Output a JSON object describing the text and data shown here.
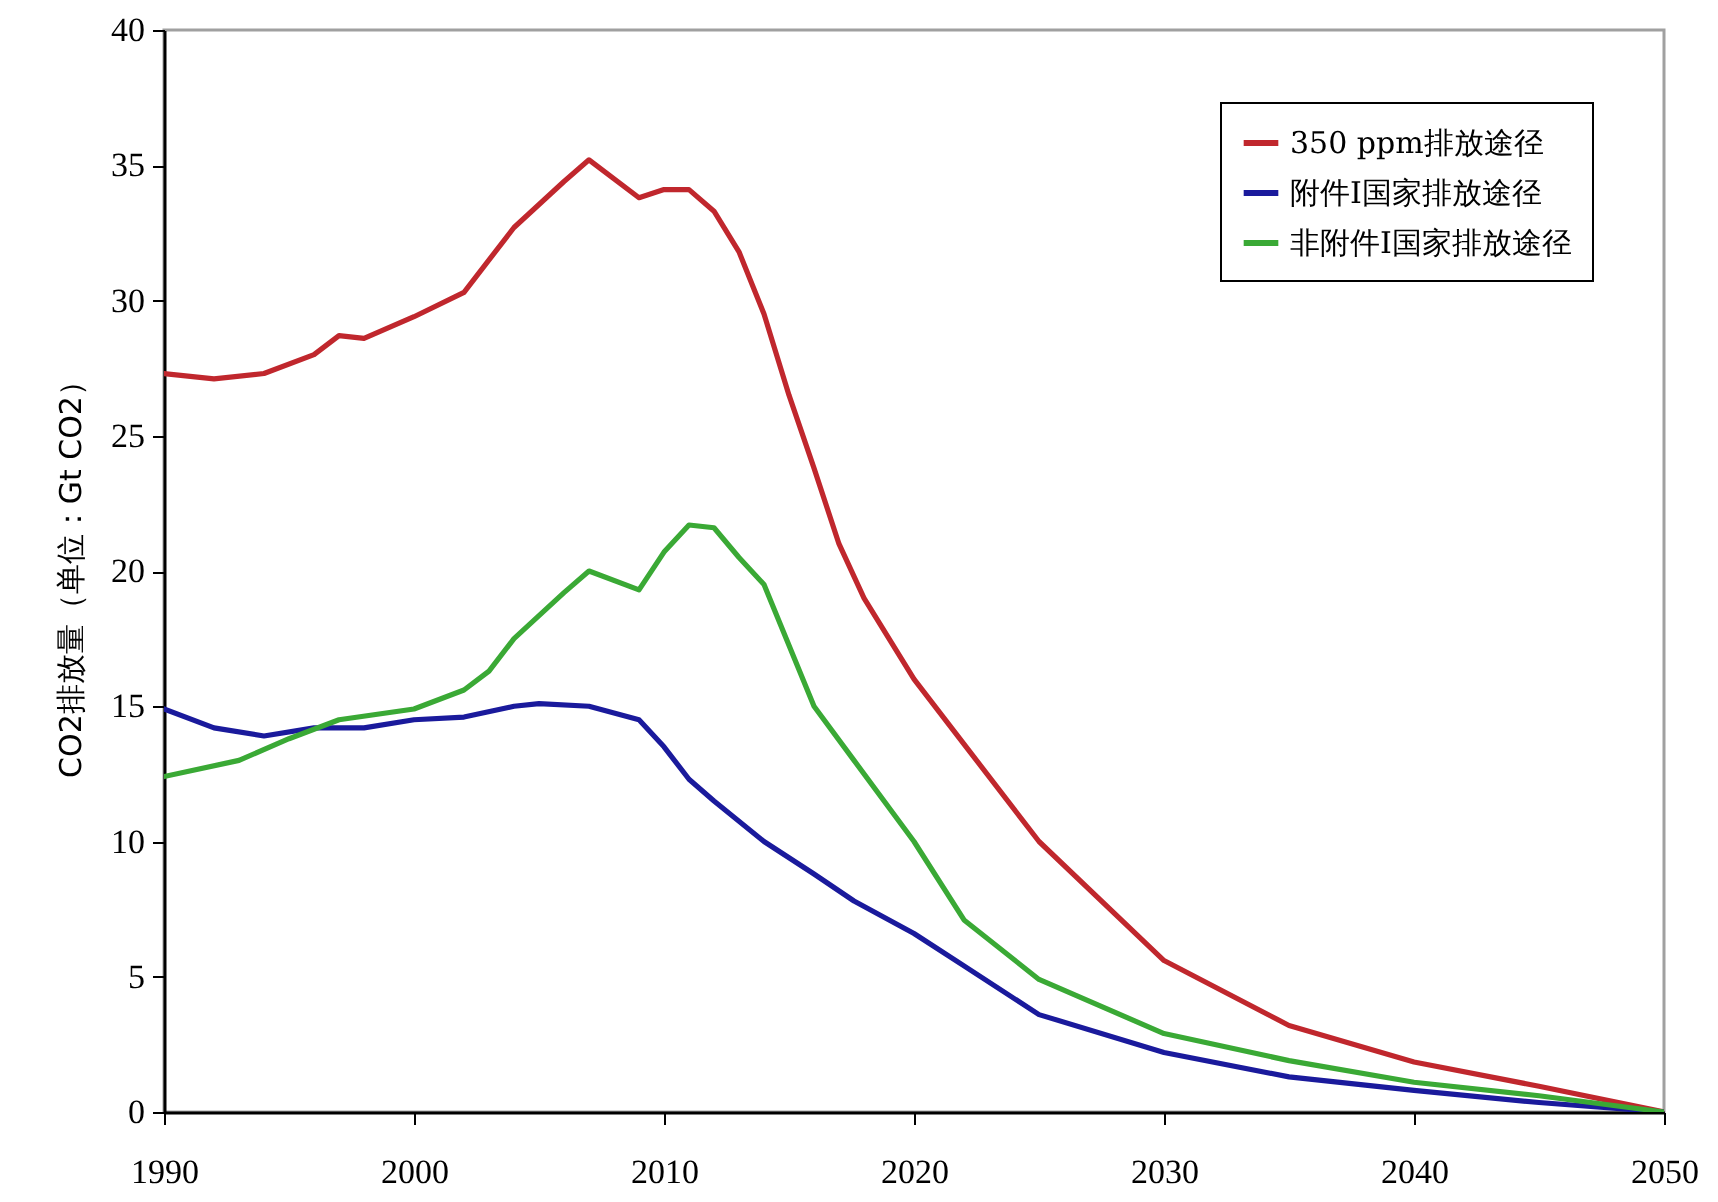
{
  "chart_data": {
    "type": "line",
    "ylabel": "CO2排放量（单位：Gt CO2）",
    "xlim": [
      1990,
      2050
    ],
    "xticks": [
      1990,
      2000,
      2010,
      2020,
      2030,
      2040,
      2050
    ],
    "ylim": [
      0,
      40
    ],
    "yticks": [
      0,
      5,
      10,
      15,
      20,
      25,
      30,
      35,
      40
    ],
    "grid": false,
    "legend": "top right",
    "marker": "none",
    "line_style": "solid",
    "series": [
      {
        "name": "350 ppm排放途径",
        "color": "#c0272d",
        "x": [
          1990,
          1992,
          1994,
          1996,
          1997,
          1998,
          2000,
          2002,
          2004,
          2006,
          2007,
          2009,
          2010,
          2011,
          2012,
          2013,
          2014,
          2015,
          2016,
          2017,
          2018,
          2020,
          2022,
          2025,
          2030,
          2035,
          2040,
          2045,
          2050
        ],
        "values": [
          27.3,
          27.1,
          27.3,
          28.0,
          28.7,
          28.6,
          29.4,
          30.3,
          32.7,
          34.4,
          35.2,
          33.8,
          34.1,
          34.1,
          33.3,
          31.8,
          29.5,
          26.5,
          23.8,
          21.0,
          19.0,
          16.0,
          13.6,
          10.0,
          5.6,
          3.2,
          1.85,
          0.95,
          0
        ]
      },
      {
        "name": "附件I国家排放途径",
        "color": "#1a1a9c",
        "x": [
          1990,
          1992,
          1994,
          1996,
          1998,
          2000,
          2002,
          2004,
          2005,
          2007,
          2009,
          2010,
          2011,
          2012,
          2014,
          2016,
          2017.6,
          2020,
          2022,
          2025,
          2030,
          2035,
          2040,
          2045,
          2050
        ],
        "values": [
          14.9,
          14.2,
          13.9,
          14.2,
          14.2,
          14.5,
          14.6,
          15.0,
          15.1,
          15.0,
          14.5,
          13.5,
          12.3,
          11.5,
          10.0,
          8.8,
          7.8,
          6.6,
          5.4,
          3.6,
          2.2,
          1.3,
          0.8,
          0.35,
          0
        ]
      },
      {
        "name": "非附件I国家排放途径",
        "color": "#3aa935",
        "x": [
          1990,
          1993,
          1995,
          1997,
          2000,
          2002,
          2003,
          2004,
          2006,
          2007,
          2009,
          2010,
          2011,
          2012,
          2013,
          2014,
          2016,
          2017.6,
          2020,
          2022,
          2025,
          2030,
          2035,
          2040,
          2045,
          2050
        ],
        "values": [
          12.4,
          13.0,
          13.8,
          14.5,
          14.9,
          15.6,
          16.3,
          17.5,
          19.2,
          20.0,
          19.3,
          20.7,
          21.7,
          21.6,
          20.5,
          19.5,
          15.0,
          13.0,
          10.0,
          7.1,
          4.9,
          2.9,
          1.9,
          1.1,
          0.6,
          0
        ]
      }
    ]
  }
}
